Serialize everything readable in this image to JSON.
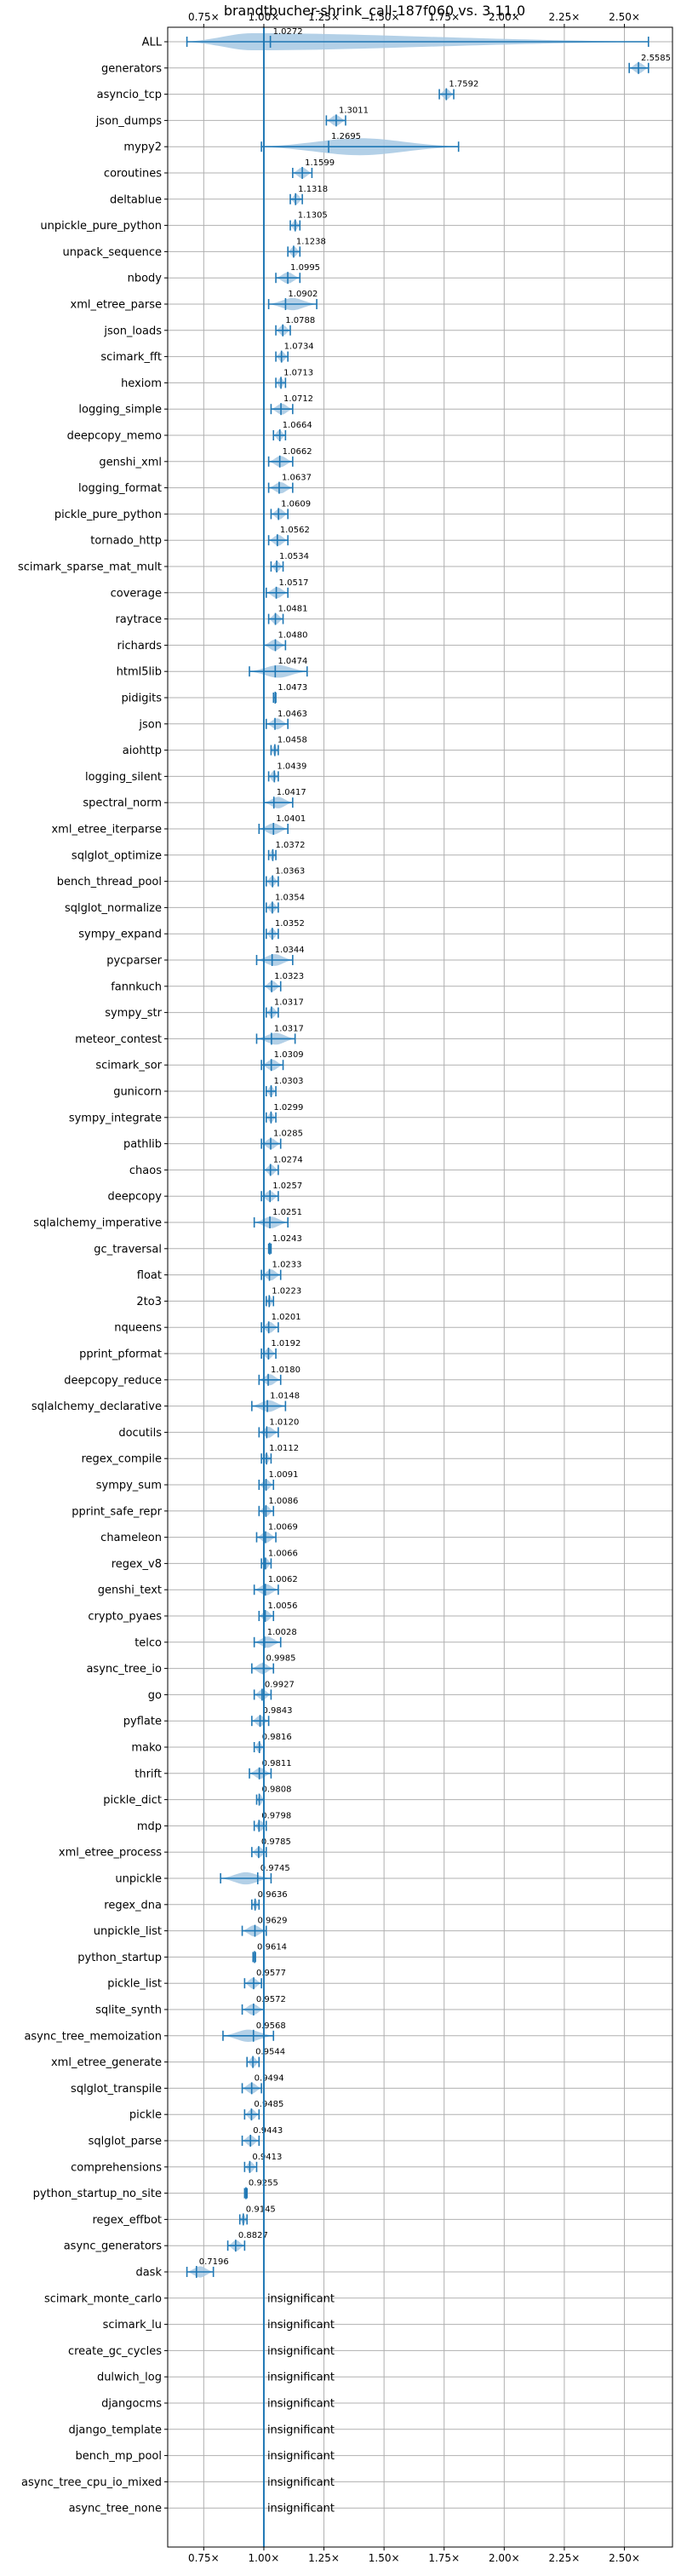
{
  "chart_data": {
    "type": "violin",
    "title": "brandtbucher-shrink_call-187f060 vs. 3.11.0",
    "xlabel": "",
    "ylabel": "",
    "xlim": [
      0.6,
      2.7
    ],
    "x_ticks": [
      {
        "value": 0.75,
        "label": "0.75×"
      },
      {
        "value": 1.0,
        "label": "1.00×"
      },
      {
        "value": 1.25,
        "label": "1.25×"
      },
      {
        "value": 1.5,
        "label": "1.50×"
      },
      {
        "value": 1.75,
        "label": "1.75×"
      },
      {
        "value": 2.0,
        "label": "2.00×"
      },
      {
        "value": 2.25,
        "label": "2.25×"
      },
      {
        "value": 2.5,
        "label": "2.50×"
      }
    ],
    "grid": true,
    "reference_line": 1.0,
    "colors": {
      "violin": "#a6c8e3",
      "marker": "#1f77b4"
    },
    "benchmarks": [
      {
        "name": "ALL",
        "value": 1.0272,
        "label": "1.0272",
        "min": 0.68,
        "max": 2.6
      },
      {
        "name": "generators",
        "value": 2.5585,
        "label": "2.5585",
        "min": 2.52,
        "max": 2.6
      },
      {
        "name": "asyncio_tcp",
        "value": 1.7592,
        "label": "1.7592",
        "min": 1.73,
        "max": 1.79
      },
      {
        "name": "json_dumps",
        "value": 1.3011,
        "label": "1.3011",
        "min": 1.26,
        "max": 1.34
      },
      {
        "name": "mypy2",
        "value": 1.2695,
        "label": "1.2695",
        "min": 0.99,
        "max": 1.81
      },
      {
        "name": "coroutines",
        "value": 1.1599,
        "label": "1.1599",
        "min": 1.12,
        "max": 1.2
      },
      {
        "name": "deltablue",
        "value": 1.1318,
        "label": "1.1318",
        "min": 1.11,
        "max": 1.16
      },
      {
        "name": "unpickle_pure_python",
        "value": 1.1305,
        "label": "1.1305",
        "min": 1.11,
        "max": 1.15
      },
      {
        "name": "unpack_sequence",
        "value": 1.1238,
        "label": "1.1238",
        "min": 1.1,
        "max": 1.15
      },
      {
        "name": "nbody",
        "value": 1.0995,
        "label": "1.0995",
        "min": 1.05,
        "max": 1.15
      },
      {
        "name": "xml_etree_parse",
        "value": 1.0902,
        "label": "1.0902",
        "min": 1.02,
        "max": 1.22
      },
      {
        "name": "json_loads",
        "value": 1.0788,
        "label": "1.0788",
        "min": 1.05,
        "max": 1.11
      },
      {
        "name": "scimark_fft",
        "value": 1.0734,
        "label": "1.0734",
        "min": 1.05,
        "max": 1.1
      },
      {
        "name": "hexiom",
        "value": 1.0713,
        "label": "1.0713",
        "min": 1.05,
        "max": 1.09
      },
      {
        "name": "logging_simple",
        "value": 1.0712,
        "label": "1.0712",
        "min": 1.03,
        "max": 1.12
      },
      {
        "name": "deepcopy_memo",
        "value": 1.0664,
        "label": "1.0664",
        "min": 1.04,
        "max": 1.09
      },
      {
        "name": "genshi_xml",
        "value": 1.0662,
        "label": "1.0662",
        "min": 1.02,
        "max": 1.12
      },
      {
        "name": "logging_format",
        "value": 1.0637,
        "label": "1.0637",
        "min": 1.02,
        "max": 1.12
      },
      {
        "name": "pickle_pure_python",
        "value": 1.0609,
        "label": "1.0609",
        "min": 1.03,
        "max": 1.1
      },
      {
        "name": "tornado_http",
        "value": 1.0562,
        "label": "1.0562",
        "min": 1.02,
        "max": 1.1
      },
      {
        "name": "scimark_sparse_mat_mult",
        "value": 1.0534,
        "label": "1.0534",
        "min": 1.03,
        "max": 1.08
      },
      {
        "name": "coverage",
        "value": 1.0517,
        "label": "1.0517",
        "min": 1.01,
        "max": 1.1
      },
      {
        "name": "raytrace",
        "value": 1.0481,
        "label": "1.0481",
        "min": 1.02,
        "max": 1.08
      },
      {
        "name": "richards",
        "value": 1.048,
        "label": "1.0480",
        "min": 1.0,
        "max": 1.09
      },
      {
        "name": "html5lib",
        "value": 1.0474,
        "label": "1.0474",
        "min": 0.94,
        "max": 1.18
      },
      {
        "name": "pidigits",
        "value": 1.0473,
        "label": "1.0473",
        "min": 1.04,
        "max": 1.05
      },
      {
        "name": "json",
        "value": 1.0463,
        "label": "1.0463",
        "min": 1.01,
        "max": 1.1
      },
      {
        "name": "aiohttp",
        "value": 1.0458,
        "label": "1.0458",
        "min": 1.03,
        "max": 1.06
      },
      {
        "name": "logging_silent",
        "value": 1.0439,
        "label": "1.0439",
        "min": 1.02,
        "max": 1.06
      },
      {
        "name": "spectral_norm",
        "value": 1.0417,
        "label": "1.0417",
        "min": 1.0,
        "max": 1.12
      },
      {
        "name": "xml_etree_iterparse",
        "value": 1.0401,
        "label": "1.0401",
        "min": 0.98,
        "max": 1.1
      },
      {
        "name": "sqlglot_optimize",
        "value": 1.0372,
        "label": "1.0372",
        "min": 1.02,
        "max": 1.05
      },
      {
        "name": "bench_thread_pool",
        "value": 1.0363,
        "label": "1.0363",
        "min": 1.01,
        "max": 1.06
      },
      {
        "name": "sqlglot_normalize",
        "value": 1.0354,
        "label": "1.0354",
        "min": 1.01,
        "max": 1.06
      },
      {
        "name": "sympy_expand",
        "value": 1.0352,
        "label": "1.0352",
        "min": 1.01,
        "max": 1.06
      },
      {
        "name": "pycparser",
        "value": 1.0344,
        "label": "1.0344",
        "min": 0.97,
        "max": 1.12
      },
      {
        "name": "fannkuch",
        "value": 1.0323,
        "label": "1.0323",
        "min": 1.0,
        "max": 1.07
      },
      {
        "name": "sympy_str",
        "value": 1.0317,
        "label": "1.0317",
        "min": 1.01,
        "max": 1.06
      },
      {
        "name": "meteor_contest",
        "value": 1.0317,
        "label": "1.0317",
        "min": 0.97,
        "max": 1.13
      },
      {
        "name": "scimark_sor",
        "value": 1.0309,
        "label": "1.0309",
        "min": 0.99,
        "max": 1.08
      },
      {
        "name": "gunicorn",
        "value": 1.0303,
        "label": "1.0303",
        "min": 1.01,
        "max": 1.05
      },
      {
        "name": "sympy_integrate",
        "value": 1.0299,
        "label": "1.0299",
        "min": 1.01,
        "max": 1.05
      },
      {
        "name": "pathlib",
        "value": 1.0285,
        "label": "1.0285",
        "min": 0.99,
        "max": 1.07
      },
      {
        "name": "chaos",
        "value": 1.0274,
        "label": "1.0274",
        "min": 1.0,
        "max": 1.06
      },
      {
        "name": "deepcopy",
        "value": 1.0257,
        "label": "1.0257",
        "min": 0.99,
        "max": 1.06
      },
      {
        "name": "sqlalchemy_imperative",
        "value": 1.0251,
        "label": "1.0251",
        "min": 0.96,
        "max": 1.1
      },
      {
        "name": "gc_traversal",
        "value": 1.0243,
        "label": "1.0243",
        "min": 1.02,
        "max": 1.03
      },
      {
        "name": "float",
        "value": 1.0233,
        "label": "1.0233",
        "min": 0.99,
        "max": 1.07
      },
      {
        "name": "2to3",
        "value": 1.0223,
        "label": "1.0223",
        "min": 1.01,
        "max": 1.04
      },
      {
        "name": "nqueens",
        "value": 1.0201,
        "label": "1.0201",
        "min": 0.99,
        "max": 1.06
      },
      {
        "name": "pprint_pformat",
        "value": 1.0192,
        "label": "1.0192",
        "min": 0.99,
        "max": 1.05
      },
      {
        "name": "deepcopy_reduce",
        "value": 1.018,
        "label": "1.0180",
        "min": 0.98,
        "max": 1.07
      },
      {
        "name": "sqlalchemy_declarative",
        "value": 1.0148,
        "label": "1.0148",
        "min": 0.95,
        "max": 1.09
      },
      {
        "name": "docutils",
        "value": 1.012,
        "label": "1.0120",
        "min": 0.98,
        "max": 1.06
      },
      {
        "name": "regex_compile",
        "value": 1.0112,
        "label": "1.0112",
        "min": 0.99,
        "max": 1.03
      },
      {
        "name": "sympy_sum",
        "value": 1.0091,
        "label": "1.0091",
        "min": 0.98,
        "max": 1.04
      },
      {
        "name": "pprint_safe_repr",
        "value": 1.0086,
        "label": "1.0086",
        "min": 0.98,
        "max": 1.04
      },
      {
        "name": "chameleon",
        "value": 1.0069,
        "label": "1.0069",
        "min": 0.97,
        "max": 1.05
      },
      {
        "name": "regex_v8",
        "value": 1.0066,
        "label": "1.0066",
        "min": 0.99,
        "max": 1.03
      },
      {
        "name": "genshi_text",
        "value": 1.0062,
        "label": "1.0062",
        "min": 0.96,
        "max": 1.06
      },
      {
        "name": "crypto_pyaes",
        "value": 1.0056,
        "label": "1.0056",
        "min": 0.98,
        "max": 1.04
      },
      {
        "name": "telco",
        "value": 1.0028,
        "label": "1.0028",
        "min": 0.96,
        "max": 1.07
      },
      {
        "name": "async_tree_io",
        "value": 0.9985,
        "label": "0.9985",
        "min": 0.95,
        "max": 1.04
      },
      {
        "name": "go",
        "value": 0.9927,
        "label": "0.9927",
        "min": 0.96,
        "max": 1.03
      },
      {
        "name": "pyflate",
        "value": 0.9843,
        "label": "0.9843",
        "min": 0.95,
        "max": 1.02
      },
      {
        "name": "mako",
        "value": 0.9816,
        "label": "0.9816",
        "min": 0.96,
        "max": 1.0
      },
      {
        "name": "thrift",
        "value": 0.9811,
        "label": "0.9811",
        "min": 0.94,
        "max": 1.03
      },
      {
        "name": "pickle_dict",
        "value": 0.9808,
        "label": "0.9808",
        "min": 0.97,
        "max": 1.0
      },
      {
        "name": "mdp",
        "value": 0.9798,
        "label": "0.9798",
        "min": 0.96,
        "max": 1.01
      },
      {
        "name": "xml_etree_process",
        "value": 0.9785,
        "label": "0.9785",
        "min": 0.95,
        "max": 1.01
      },
      {
        "name": "unpickle",
        "value": 0.9745,
        "label": "0.9745",
        "min": 0.82,
        "max": 1.03
      },
      {
        "name": "regex_dna",
        "value": 0.9636,
        "label": "0.9636",
        "min": 0.95,
        "max": 0.98
      },
      {
        "name": "unpickle_list",
        "value": 0.9629,
        "label": "0.9629",
        "min": 0.91,
        "max": 1.01
      },
      {
        "name": "python_startup",
        "value": 0.9614,
        "label": "0.9614",
        "min": 0.955,
        "max": 0.965
      },
      {
        "name": "pickle_list",
        "value": 0.9577,
        "label": "0.9577",
        "min": 0.92,
        "max": 0.99
      },
      {
        "name": "sqlite_synth",
        "value": 0.9572,
        "label": "0.9572",
        "min": 0.91,
        "max": 1.0
      },
      {
        "name": "async_tree_memoization",
        "value": 0.9568,
        "label": "0.9568",
        "min": 0.83,
        "max": 1.04
      },
      {
        "name": "xml_etree_generate",
        "value": 0.9544,
        "label": "0.9544",
        "min": 0.93,
        "max": 0.98
      },
      {
        "name": "sqlglot_transpile",
        "value": 0.9494,
        "label": "0.9494",
        "min": 0.91,
        "max": 0.99
      },
      {
        "name": "pickle",
        "value": 0.9485,
        "label": "0.9485",
        "min": 0.92,
        "max": 0.98
      },
      {
        "name": "sqlglot_parse",
        "value": 0.9443,
        "label": "0.9443",
        "min": 0.91,
        "max": 0.98
      },
      {
        "name": "comprehensions",
        "value": 0.9413,
        "label": "0.9413",
        "min": 0.92,
        "max": 0.97
      },
      {
        "name": "python_startup_no_site",
        "value": 0.9255,
        "label": "0.9255",
        "min": 0.92,
        "max": 0.93
      },
      {
        "name": "regex_effbot",
        "value": 0.9145,
        "label": "0.9145",
        "min": 0.9,
        "max": 0.93
      },
      {
        "name": "async_generators",
        "value": 0.8827,
        "label": "0.8827",
        "min": 0.85,
        "max": 0.92
      },
      {
        "name": "dask",
        "value": 0.7196,
        "label": "0.7196",
        "min": 0.68,
        "max": 0.79
      },
      {
        "name": "scimark_monte_carlo",
        "value": null,
        "label": "insignificant"
      },
      {
        "name": "scimark_lu",
        "value": null,
        "label": "insignificant"
      },
      {
        "name": "create_gc_cycles",
        "value": null,
        "label": "insignificant"
      },
      {
        "name": "dulwich_log",
        "value": null,
        "label": "insignificant"
      },
      {
        "name": "djangocms",
        "value": null,
        "label": "insignificant"
      },
      {
        "name": "django_template",
        "value": null,
        "label": "insignificant"
      },
      {
        "name": "bench_mp_pool",
        "value": null,
        "label": "insignificant"
      },
      {
        "name": "async_tree_cpu_io_mixed",
        "value": null,
        "label": "insignificant"
      },
      {
        "name": "async_tree_none",
        "value": null,
        "label": "insignificant"
      }
    ]
  }
}
